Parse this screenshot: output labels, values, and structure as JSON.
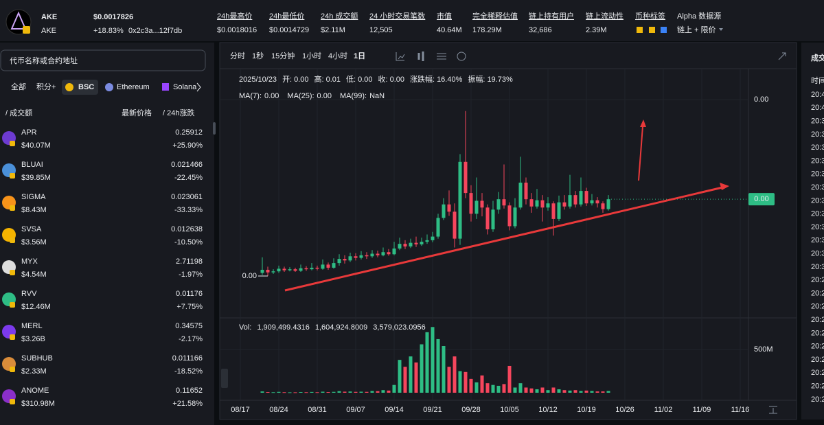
{
  "header": {
    "symbol": "AKE",
    "price": "$0.0017826",
    "subtitle": "AKE",
    "change": "+18.83%",
    "address": "0x2c3a...12f7db",
    "stats": [
      {
        "label": "24h最高价",
        "value": "$0.0018016"
      },
      {
        "label": "24h最低价",
        "value": "$0.0014729"
      },
      {
        "label": "24h 成交额",
        "value": "$2.11M"
      },
      {
        "label": "24 小时交易笔数",
        "value": "12,505"
      },
      {
        "label": "市值",
        "value": "40.64M"
      },
      {
        "label": "完全稀释估值",
        "value": "178.29M"
      },
      {
        "label": "链上持有用户",
        "value": "32,686"
      },
      {
        "label": "链上流动性",
        "value": "2.39M"
      },
      {
        "label": "币种标签",
        "value": ""
      }
    ],
    "alpha_label": "Alpha 数据源",
    "alpha_value": "链上 + 限价"
  },
  "sidebar": {
    "search_placeholder": "代币名称或合约地址",
    "filters": [
      "全部",
      "积分+",
      "BSC",
      "Ethereum",
      "Solana"
    ],
    "columns": [
      "/ 成交额",
      "最新价格",
      "/ 24h涨跌"
    ],
    "tokens": [
      {
        "name": "APR",
        "volume": "$40.07M",
        "price": "0.25912",
        "change": "+25.90%"
      },
      {
        "name": "BLUAI",
        "volume": "$39.85M",
        "price": "0.021466",
        "change": "-22.45%"
      },
      {
        "name": "SIGMA",
        "volume": "$8.43M",
        "price": "0.023061",
        "change": "-33.33%"
      },
      {
        "name": "SVSA",
        "volume": "$3.56M",
        "price": "0.012638",
        "change": "-10.50%"
      },
      {
        "name": "MYX",
        "volume": "$4.54M",
        "price": "2.71198",
        "change": "-1.97%"
      },
      {
        "name": "RVV",
        "volume": "$12.46M",
        "price": "0.01176",
        "change": "+7.75%"
      },
      {
        "name": "MERL",
        "volume": "$3.26B",
        "price": "0.34575",
        "change": "-2.17%"
      },
      {
        "name": "SUBHUB",
        "volume": "$2.33M",
        "price": "0.011166",
        "change": "-18.52%"
      },
      {
        "name": "ANOME",
        "volume": "$310.98M",
        "price": "0.11652",
        "change": "+21.58%"
      }
    ]
  },
  "chart_data": {
    "type": "candlestick",
    "intervals": [
      "分时",
      "1秒",
      "15分钟",
      "1小时",
      "4小时",
      "1日"
    ],
    "info": [
      "2025/10/23",
      "开:",
      "0.00",
      "高:",
      "0.01",
      "低:",
      "0.00",
      "收:",
      "0.00",
      "涨跌幅:",
      "16.40%",
      "振幅:",
      "19.73%"
    ],
    "ma": [
      "MA(7):",
      "0.00",
      "MA(25):",
      "0.00",
      "MA(99):",
      "NaN"
    ],
    "vol_info": [
      "Vol:",
      "1,909,499.4316",
      "1,604,924.8009",
      "3,579,023.0956"
    ],
    "last_price_label": "0.00",
    "low_label": "0.00",
    "up_color": "#2ebd85",
    "down_color": "#f6465d",
    "open": [
      0.00036,
      0.00042,
      0.00037,
      0.00039,
      0.00044,
      0.00041,
      0.00043,
      0.0004,
      0.00045,
      0.00043,
      0.00046,
      0.00044,
      0.00052,
      0.00046,
      0.00055,
      0.00063,
      0.0006,
      0.00068,
      0.00065,
      0.0007,
      0.00068,
      0.00073,
      0.0007,
      0.00076,
      0.00072,
      0.00083,
      0.00092,
      0.00087,
      0.00094,
      0.00091,
      0.00096,
      0.00099,
      0.00106,
      0.00142,
      0.00168,
      0.00154,
      0.00102,
      0.0025,
      0.0019,
      0.0015,
      0.00175,
      0.00162,
      0.0012,
      0.00158,
      0.00178,
      0.00166,
      0.00126,
      0.00162,
      0.0021,
      0.00178,
      0.00164,
      0.00176,
      0.00162,
      0.0017,
      0.0014,
      0.00172,
      0.00164,
      0.00186,
      0.00168,
      0.00194,
      0.0017,
      0.00176,
      0.0017,
      0.00159
    ],
    "high": [
      0.00066,
      0.00048,
      0.00043,
      0.0005,
      0.00048,
      0.00047,
      0.00046,
      0.00052,
      0.00049,
      0.00055,
      0.0005,
      0.00062,
      0.00056,
      0.00064,
      0.00072,
      0.0007,
      0.00075,
      0.00074,
      0.00078,
      0.00076,
      0.0008,
      0.00079,
      0.00085,
      0.00082,
      0.00096,
      0.00104,
      0.00099,
      0.00102,
      0.00106,
      0.00104,
      0.0011,
      0.00115,
      0.0015,
      0.0018,
      0.00195,
      0.0017,
      0.00265,
      0.00348,
      0.00205,
      0.0022,
      0.0019,
      0.00168,
      0.00175,
      0.00192,
      0.00245,
      0.00172,
      0.0018,
      0.0026,
      0.0022,
      0.0019,
      0.00198,
      0.00186,
      0.00182,
      0.00174,
      0.00185,
      0.00186,
      0.00225,
      0.00194,
      0.0022,
      0.002,
      0.00188,
      0.00182,
      0.00174,
      0.00186
    ],
    "low": [
      0.00032,
      0.0003,
      0.00034,
      0.00036,
      0.00038,
      0.00039,
      0.00038,
      0.00038,
      0.0004,
      0.00041,
      0.00041,
      0.00042,
      0.00042,
      0.00044,
      0.0005,
      0.00054,
      0.00057,
      0.0006,
      0.00062,
      0.00063,
      0.00065,
      0.00066,
      0.00068,
      0.00069,
      0.0007,
      0.0008,
      0.00082,
      0.00084,
      0.00086,
      0.00088,
      0.00092,
      0.00095,
      0.00102,
      0.00138,
      0.00146,
      0.00085,
      0.0009,
      0.0018,
      0.00135,
      0.0014,
      0.00145,
      0.0011,
      0.00115,
      0.0015,
      0.0016,
      0.00118,
      0.00122,
      0.00158,
      0.00168,
      0.00152,
      0.0016,
      0.00135,
      0.00156,
      0.00108,
      0.00136,
      0.00158,
      0.0016,
      0.00162,
      0.00164,
      0.00165,
      0.00166,
      0.00162,
      0.00152,
      0.00156
    ],
    "close": [
      0.00042,
      0.00037,
      0.00039,
      0.00044,
      0.00041,
      0.00043,
      0.0004,
      0.00045,
      0.00043,
      0.00046,
      0.00044,
      0.00052,
      0.00046,
      0.00055,
      0.00063,
      0.0006,
      0.00068,
      0.00065,
      0.0007,
      0.00068,
      0.00073,
      0.0007,
      0.00076,
      0.00072,
      0.00083,
      0.00092,
      0.00087,
      0.00094,
      0.00091,
      0.00096,
      0.00099,
      0.00106,
      0.00142,
      0.00168,
      0.00154,
      0.00102,
      0.0025,
      0.0019,
      0.0015,
      0.00175,
      0.00162,
      0.0012,
      0.00158,
      0.00178,
      0.00166,
      0.00126,
      0.00162,
      0.0021,
      0.00178,
      0.00164,
      0.00176,
      0.00162,
      0.0017,
      0.0014,
      0.00172,
      0.00164,
      0.00186,
      0.00168,
      0.00194,
      0.0017,
      0.00176,
      0.0017,
      0.00159,
      0.00178
    ],
    "volume": [
      15000000,
      8000000,
      6000000,
      10000000,
      6000000,
      5000000,
      5000000,
      8000000,
      6000000,
      9000000,
      6000000,
      12000000,
      8000000,
      10000000,
      18000000,
      12000000,
      14000000,
      10000000,
      12000000,
      10000000,
      20000000,
      18000000,
      30000000,
      25000000,
      90000000,
      380000000,
      300000000,
      420000000,
      350000000,
      560000000,
      700000000,
      760000000,
      620000000,
      540000000,
      300000000,
      420000000,
      250000000,
      240000000,
      160000000,
      120000000,
      200000000,
      110000000,
      90000000,
      80000000,
      100000000,
      310000000,
      60000000,
      110000000,
      60000000,
      50000000,
      40000000,
      60000000,
      30000000,
      60000000,
      40000000,
      30000000,
      25000000,
      30000000,
      20000000,
      25000000,
      20000000,
      15000000,
      15000000,
      20000000
    ],
    "ylim": [
      -0.0006,
      0.0039
    ],
    "yticks": [
      {
        "value": 0.0037,
        "label": "0.00"
      }
    ],
    "vol_ylim": [
      0,
      810000000
    ],
    "vol_ticks": [
      {
        "value": 500000000,
        "label": "500M"
      }
    ],
    "xticks": [
      "08/17",
      "08/24",
      "08/31",
      "09/07",
      "09/14",
      "09/21",
      "09/28",
      "10/05",
      "10/12",
      "10/19",
      "10/26",
      "11/02",
      "11/09",
      "11/16"
    ]
  },
  "trades": {
    "title": "成交",
    "column": "时间",
    "times": [
      "20:4",
      "20:4",
      "20:3",
      "20:3",
      "20:3",
      "20:3",
      "20:3",
      "20:3",
      "20:3",
      "20:3",
      "20:3",
      "20:3",
      "20:3",
      "20:3",
      "20:2",
      "20:2",
      "20:2",
      "20:2",
      "20:2",
      "20:2",
      "20:2",
      "20:2",
      "20:2",
      "20:2"
    ]
  }
}
